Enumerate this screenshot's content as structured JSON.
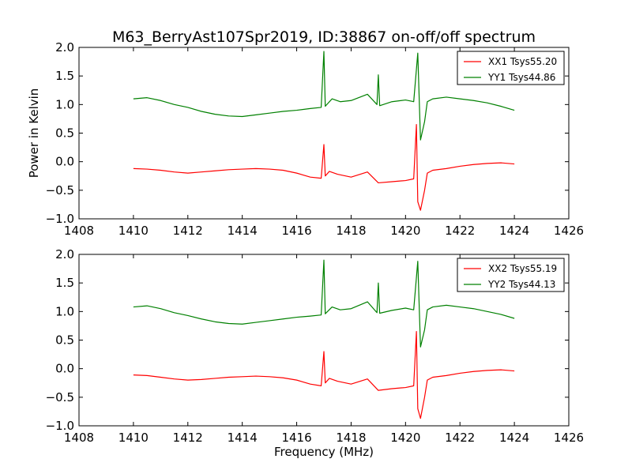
{
  "figure_title": "M63_BerryAst107Spr2019, ID:38867 on-off/off spectrum",
  "colors": {
    "xx": "#ff0000",
    "yy": "#008000"
  },
  "chart_data": [
    {
      "type": "line",
      "title": "",
      "xlabel": "",
      "ylabel": "Power in Kelvin",
      "xlim": [
        1408,
        1426
      ],
      "ylim": [
        -1.0,
        2.0
      ],
      "xticks": [
        "1408",
        "1410",
        "1412",
        "1414",
        "1416",
        "1418",
        "1420",
        "1422",
        "1424",
        "1426"
      ],
      "yticks": [
        "−1.0",
        "−0.5",
        "0.0",
        "0.5",
        "1.0",
        "1.5",
        "2.0"
      ],
      "grid": false,
      "legend": "top-right",
      "series": [
        {
          "name": "XX1 Tsys55.20",
          "color": "#ff0000",
          "x": [
            1410.0,
            1410.5,
            1411.0,
            1411.5,
            1412.0,
            1412.5,
            1413.0,
            1413.5,
            1414.0,
            1414.5,
            1415.0,
            1415.5,
            1416.0,
            1416.5,
            1416.9,
            1417.0,
            1417.05,
            1417.2,
            1417.5,
            1418.0,
            1418.6,
            1419.0,
            1419.5,
            1420.0,
            1420.3,
            1420.4,
            1420.45,
            1420.55,
            1420.7,
            1420.8,
            1421.0,
            1421.5,
            1422.0,
            1422.5,
            1423.0,
            1423.5,
            1424.0
          ],
          "y": [
            -0.12,
            -0.13,
            -0.15,
            -0.18,
            -0.2,
            -0.18,
            -0.16,
            -0.14,
            -0.13,
            -0.12,
            -0.13,
            -0.15,
            -0.2,
            -0.27,
            -0.29,
            0.3,
            -0.25,
            -0.17,
            -0.22,
            -0.27,
            -0.18,
            -0.37,
            -0.35,
            -0.33,
            -0.3,
            0.65,
            -0.7,
            -0.85,
            -0.5,
            -0.2,
            -0.15,
            -0.12,
            -0.08,
            -0.05,
            -0.03,
            -0.02,
            -0.04
          ]
        },
        {
          "name": "YY1 Tsys44.86",
          "color": "#008000",
          "x": [
            1410.0,
            1410.5,
            1411.0,
            1411.5,
            1412.0,
            1412.5,
            1413.0,
            1413.5,
            1414.0,
            1414.5,
            1415.0,
            1415.5,
            1416.0,
            1416.5,
            1416.9,
            1417.0,
            1417.05,
            1417.3,
            1417.6,
            1418.0,
            1418.6,
            1418.95,
            1419.0,
            1419.05,
            1419.5,
            1420.0,
            1420.3,
            1420.45,
            1420.55,
            1420.7,
            1420.8,
            1421.0,
            1421.5,
            1422.0,
            1422.5,
            1423.0,
            1423.5,
            1424.0
          ],
          "y": [
            1.1,
            1.12,
            1.07,
            1.0,
            0.95,
            0.88,
            0.83,
            0.8,
            0.79,
            0.82,
            0.85,
            0.88,
            0.9,
            0.93,
            0.95,
            1.93,
            0.97,
            1.1,
            1.05,
            1.07,
            1.18,
            1.0,
            1.52,
            0.98,
            1.05,
            1.08,
            1.05,
            1.9,
            0.38,
            0.7,
            1.05,
            1.1,
            1.13,
            1.1,
            1.07,
            1.03,
            0.97,
            0.9
          ]
        }
      ]
    },
    {
      "type": "line",
      "title": "",
      "xlabel": "Frequency (MHz)",
      "ylabel": "",
      "xlim": [
        1408,
        1426
      ],
      "ylim": [
        -1.0,
        2.0
      ],
      "xticks": [
        "1408",
        "1410",
        "1412",
        "1414",
        "1416",
        "1418",
        "1420",
        "1422",
        "1424",
        "1426"
      ],
      "yticks": [
        "−1.0",
        "−0.5",
        "0.0",
        "0.5",
        "1.0",
        "1.5",
        "2.0"
      ],
      "grid": false,
      "legend": "top-right",
      "series": [
        {
          "name": "XX2 Tsys55.19",
          "color": "#ff0000",
          "x": [
            1410.0,
            1410.5,
            1411.0,
            1411.5,
            1412.0,
            1412.5,
            1413.0,
            1413.5,
            1414.0,
            1414.5,
            1415.0,
            1415.5,
            1416.0,
            1416.5,
            1416.9,
            1417.0,
            1417.05,
            1417.2,
            1417.5,
            1418.0,
            1418.6,
            1419.0,
            1419.5,
            1420.0,
            1420.3,
            1420.4,
            1420.45,
            1420.55,
            1420.7,
            1420.8,
            1421.0,
            1421.5,
            1422.0,
            1422.5,
            1423.0,
            1423.5,
            1424.0
          ],
          "y": [
            -0.11,
            -0.12,
            -0.15,
            -0.18,
            -0.2,
            -0.19,
            -0.17,
            -0.15,
            -0.14,
            -0.13,
            -0.14,
            -0.16,
            -0.2,
            -0.27,
            -0.3,
            0.3,
            -0.25,
            -0.17,
            -0.22,
            -0.27,
            -0.18,
            -0.38,
            -0.35,
            -0.33,
            -0.3,
            0.65,
            -0.7,
            -0.87,
            -0.5,
            -0.2,
            -0.15,
            -0.12,
            -0.08,
            -0.05,
            -0.03,
            -0.02,
            -0.04
          ]
        },
        {
          "name": "YY2 Tsys44.13",
          "color": "#008000",
          "x": [
            1410.0,
            1410.5,
            1411.0,
            1411.5,
            1412.0,
            1412.5,
            1413.0,
            1413.5,
            1414.0,
            1414.5,
            1415.0,
            1415.5,
            1416.0,
            1416.5,
            1416.9,
            1417.0,
            1417.05,
            1417.3,
            1417.6,
            1418.0,
            1418.6,
            1418.95,
            1419.0,
            1419.05,
            1419.5,
            1420.0,
            1420.3,
            1420.45,
            1420.55,
            1420.7,
            1420.8,
            1421.0,
            1421.5,
            1422.0,
            1422.5,
            1423.0,
            1423.5,
            1424.0
          ],
          "y": [
            1.08,
            1.1,
            1.05,
            0.98,
            0.93,
            0.87,
            0.82,
            0.79,
            0.78,
            0.81,
            0.84,
            0.87,
            0.9,
            0.92,
            0.94,
            1.9,
            0.96,
            1.08,
            1.03,
            1.05,
            1.17,
            0.98,
            1.5,
            0.97,
            1.02,
            1.06,
            1.03,
            1.88,
            0.38,
            0.68,
            1.03,
            1.08,
            1.11,
            1.08,
            1.05,
            1.0,
            0.95,
            0.88
          ]
        }
      ]
    }
  ]
}
